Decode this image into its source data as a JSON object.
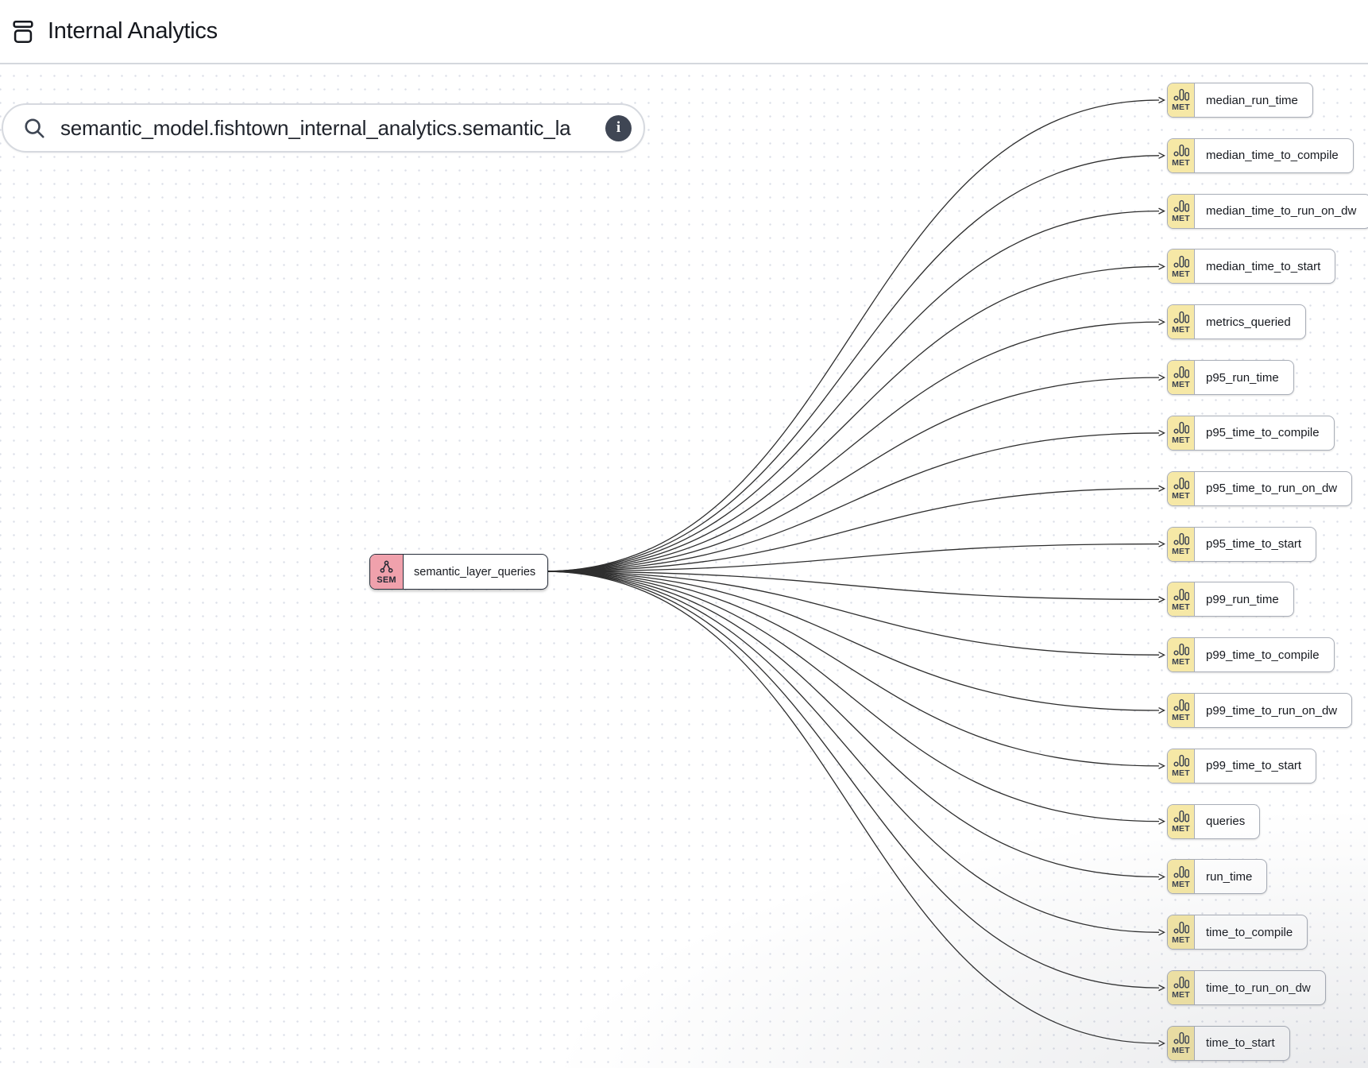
{
  "header": {
    "title": "Internal Analytics",
    "icon": "database-icon"
  },
  "search": {
    "value": "semantic_model.fishtown_internal_analytics.semantic_la",
    "search_icon": "search-icon",
    "info_icon": "info-icon",
    "info_glyph": "i"
  },
  "nodes": {
    "source": {
      "type_badge": "SEM",
      "icon": "network-icon",
      "label": "semantic_layer_queries"
    },
    "metric_type_badge": "MET",
    "metric_icon": "bar-chart-icon",
    "metrics": [
      {
        "label": "median_run_time"
      },
      {
        "label": "median_time_to_compile"
      },
      {
        "label": "median_time_to_run_on_dw"
      },
      {
        "label": "median_time_to_start"
      },
      {
        "label": "metrics_queried"
      },
      {
        "label": "p95_run_time"
      },
      {
        "label": "p95_time_to_compile"
      },
      {
        "label": "p95_time_to_run_on_dw"
      },
      {
        "label": "p95_time_to_start"
      },
      {
        "label": "p99_run_time"
      },
      {
        "label": "p99_time_to_compile"
      },
      {
        "label": "p99_time_to_run_on_dw"
      },
      {
        "label": "p99_time_to_start"
      },
      {
        "label": "queries"
      },
      {
        "label": "run_time"
      },
      {
        "label": "time_to_compile"
      },
      {
        "label": "time_to_run_on_dw"
      },
      {
        "label": "time_to_start"
      }
    ]
  },
  "colors": {
    "met_badge": "#F6E8A6",
    "sem_badge": "#F0A1AC",
    "edge": "#2E2E2E",
    "node_border": "#A9AEB8",
    "selected_border": "#272E3A",
    "divider": "#D4D8DD",
    "search_border": "#D6D9DF",
    "info_bg": "#3F4654",
    "dot": "#DCDFE8"
  }
}
